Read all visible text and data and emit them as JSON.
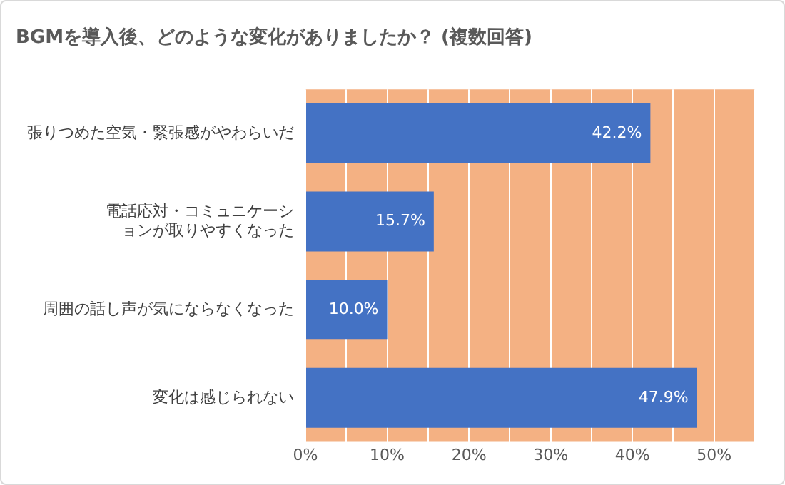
{
  "chart_data": {
    "type": "bar",
    "orientation": "horizontal",
    "title": "BGMを導入後、どのような変化がありましたか？ (複数回答)",
    "categories": [
      "張りつめた空気・緊張感がやわらいだ",
      "電話応対・コミュニケーションが取りやすくなった",
      "周囲の話し声が気にならなくなった",
      "変化は感じられない"
    ],
    "values": [
      42.2,
      15.7,
      10.0,
      47.9
    ],
    "value_labels": [
      "42.2%",
      "15.7%",
      "10.0%",
      "47.9%"
    ],
    "color": "#4472c4",
    "xlim": [
      0,
      55
    ],
    "xticks": [
      {
        "value": 0,
        "label": "0%"
      },
      {
        "value": 5,
        "label": null
      },
      {
        "value": 10,
        "label": "10%"
      },
      {
        "value": 15,
        "label": null
      },
      {
        "value": 20,
        "label": "20%"
      },
      {
        "value": 25,
        "label": null
      },
      {
        "value": 30,
        "label": "30%"
      },
      {
        "value": 35,
        "label": null
      },
      {
        "value": 40,
        "label": "40%"
      },
      {
        "value": 45,
        "label": null
      },
      {
        "value": 50,
        "label": "50%"
      },
      {
        "value": 55,
        "label": null
      }
    ],
    "grid": "x"
  }
}
